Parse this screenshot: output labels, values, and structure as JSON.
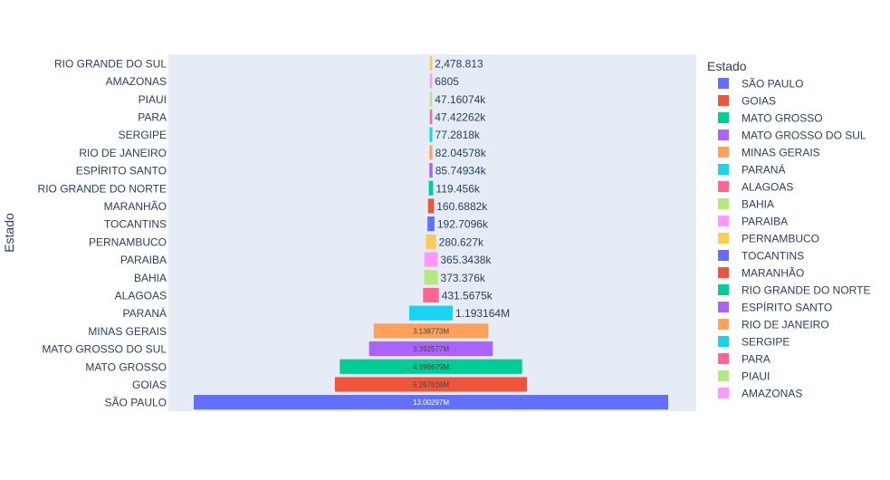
{
  "chart_data": {
    "type": "funnel",
    "orientation": "horizontal",
    "ylabel": "Estado",
    "legend_title": "Estado",
    "legend_placement": "right",
    "categories": [
      "SÃO PAULO",
      "GOIAS",
      "MATO GROSSO",
      "MATO GROSSO DO SUL",
      "MINAS GERAIS",
      "PARANÁ",
      "ALAGOAS",
      "BAHIA",
      "PARAIBA",
      "PERNAMBUCO",
      "TOCANTINS",
      "MARANHÃO",
      "RIO GRANDE DO NORTE",
      "ESPÍRITO SANTO",
      "RIO DE JANEIRO",
      "SERGIPE",
      "PARA",
      "PIAUI",
      "AMAZONAS",
      "RIO GRANDE DO SUL"
    ],
    "values": [
      13002970,
      5267616,
      4996679,
      3392577,
      3138773,
      1193164,
      431567.5,
      373376,
      365343.8,
      280627,
      192709.6,
      160688.2,
      119456,
      85749.34,
      82045.78,
      77281.8,
      47422.62,
      47160.74,
      6805,
      2478.813
    ],
    "value_labels": [
      "13.00297M",
      "5.267616M",
      "4.996679M",
      "3.392577M",
      "3.138773M",
      "1.193164M",
      "431.5675k",
      "373.376k",
      "365.3438k",
      "280.627k",
      "192.7096k",
      "160.6882k",
      "119.456k",
      "85.74934k",
      "82.04578k",
      "77.2818k",
      "47.42262k",
      "47.16074k",
      "6805",
      "2,478.813"
    ],
    "label_inside": [
      true,
      true,
      true,
      true,
      true,
      false,
      false,
      false,
      false,
      false,
      false,
      false,
      false,
      false,
      false,
      false,
      false,
      false,
      false,
      false
    ],
    "colors": [
      "#636efa",
      "#EF553B",
      "#00cc96",
      "#ab63fa",
      "#FFA15A",
      "#19d3f3",
      "#FF6692",
      "#B6E880",
      "#FF97FF",
      "#FECB52",
      "#636efa",
      "#EF553B",
      "#00cc96",
      "#ab63fa",
      "#FFA15A",
      "#19d3f3",
      "#FF6692",
      "#B6E880",
      "#FF97FF",
      "#FECB52"
    ],
    "legend_entries": [
      "SÃO PAULO",
      "GOIAS",
      "MATO GROSSO",
      "MATO GROSSO DO SUL",
      "MINAS GERAIS",
      "PARANÁ",
      "ALAGOAS",
      "BAHIA",
      "PARAIBA",
      "PERNAMBUCO",
      "TOCANTINS",
      "MARANHÃO",
      "RIO GRANDE DO NORTE",
      "ESPÍRITO SANTO",
      "RIO DE JANEIRO",
      "SERGIPE",
      "PARA",
      "PIAUI",
      "AMAZONAS"
    ],
    "plot_background": "#e5ecf6"
  }
}
